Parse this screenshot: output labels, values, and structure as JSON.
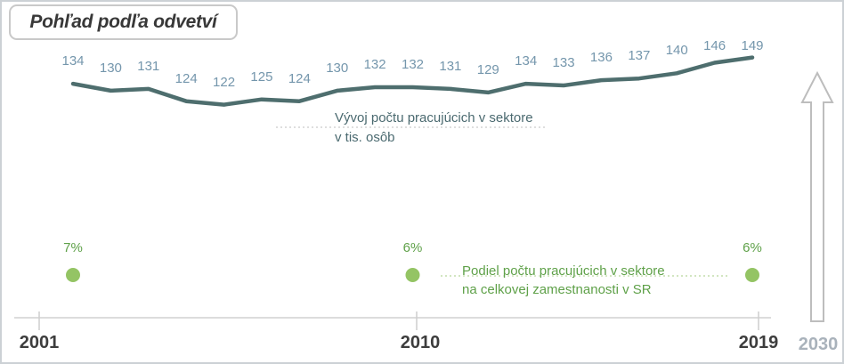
{
  "title": "Pohľad podľa odvetví",
  "annotations": {
    "series": {
      "line1": "Vývoj počtu pracujúcich v sektore",
      "line2": "v tis. osôb"
    },
    "share": {
      "line1": "Podiel počtu pracujúcich v sektore",
      "line2": "na celkovej zamestnanosti v SR"
    }
  },
  "chart_data": {
    "type": "line",
    "title": "Pohľad podľa odvetví",
    "x": [
      2001,
      2002,
      2003,
      2004,
      2005,
      2006,
      2007,
      2008,
      2009,
      2010,
      2011,
      2012,
      2013,
      2014,
      2015,
      2016,
      2017,
      2018,
      2019
    ],
    "series": [
      {
        "name": "Vývoj počtu pracujúcich v sektore v tis. osôb",
        "type": "line",
        "values": [
          134,
          130,
          131,
          124,
          122,
          125,
          124,
          130,
          132,
          132,
          131,
          129,
          134,
          133,
          136,
          137,
          140,
          146,
          149
        ],
        "color": "#4e6e6e",
        "data_labels": true
      },
      {
        "name": "Podiel počtu pracujúcich v sektore na celkovej zamestnanosti v SR",
        "type": "scatter",
        "color": "#94c464",
        "points": [
          {
            "x": 2001,
            "label": "7%"
          },
          {
            "x": 2010,
            "label": "6%"
          },
          {
            "x": 2019,
            "label": "6%"
          }
        ]
      }
    ],
    "x_axis": {
      "tick_labels": [
        "2001",
        "2010",
        "2019"
      ],
      "future_label": "2030"
    },
    "grid": false,
    "legend": "none"
  },
  "colors": {
    "line": "#4e6e6e",
    "data_label": "#7496ac",
    "dot_green": "#94c464",
    "green_text": "#5fa149",
    "teal_text": "#4b6a70",
    "axis_gray": "#d0d0d0",
    "year_dark": "#3d3d3d",
    "year_future": "#a9b2bb",
    "arrow_outline": "#bdbdbd",
    "dotted_gray": "#cbcbcb",
    "dotted_green": "#b8d89c"
  }
}
